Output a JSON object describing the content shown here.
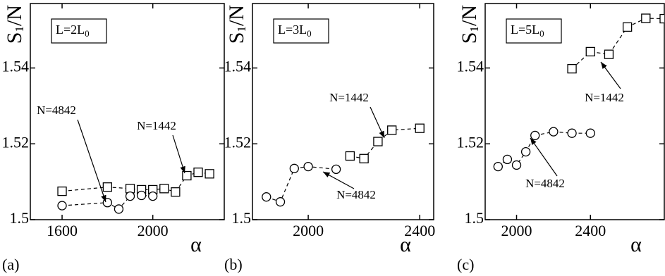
{
  "chart_data": [
    {
      "type": "line",
      "panel_label": "(a)",
      "box_label": [
        "L=2L",
        "0"
      ],
      "ylabel": [
        "S",
        "1",
        "/N"
      ],
      "xlabel": "α",
      "xlim": [
        1460,
        2315
      ],
      "xticks": [
        1600,
        2000
      ],
      "ylim": [
        1.5,
        1.557
      ],
      "yticks": [
        1.5,
        1.52,
        1.54
      ],
      "annotations": [
        "N=4842",
        "N=1442"
      ],
      "series": [
        {
          "marker": "square",
          "color": "#000000",
          "x": [
            1600,
            1800,
            1900,
            1950,
            2000,
            2050,
            2100,
            2150,
            2200,
            2250
          ],
          "values": [
            1.5075,
            1.5086,
            1.5082,
            1.5079,
            1.5079,
            1.5082,
            1.5073,
            1.5116,
            1.5125,
            1.5121
          ]
        },
        {
          "marker": "circle",
          "color": "#000000",
          "x": [
            1600,
            1800,
            1850,
            1900,
            1950,
            2000
          ],
          "values": [
            1.5037,
            1.5045,
            1.5028,
            1.5062,
            1.5064,
            1.5062
          ]
        }
      ]
    },
    {
      "type": "line",
      "panel_label": "(b)",
      "box_label": [
        "L=3L",
        "0"
      ],
      "ylabel": [
        "S",
        "1",
        "/N"
      ],
      "xlabel": "α",
      "xlim": [
        1800,
        2450
      ],
      "xticks": [
        2000,
        2400
      ],
      "ylim": [
        1.5,
        1.557
      ],
      "yticks": [
        1.5,
        1.52,
        1.54
      ],
      "annotations": [
        "N=1442",
        "N=4842"
      ],
      "series": [
        {
          "marker": "square",
          "color": "#000000",
          "x": [
            2150,
            2200,
            2250,
            2300,
            2400
          ],
          "values": [
            1.5168,
            1.5161,
            1.5206,
            1.5236,
            1.5241
          ]
        },
        {
          "marker": "circle",
          "color": "#000000",
          "x": [
            1850,
            1900,
            1950,
            2000,
            2100
          ],
          "values": [
            1.506,
            1.5047,
            1.5135,
            1.514,
            1.5133
          ]
        }
      ]
    },
    {
      "type": "line",
      "panel_label": "(c)",
      "box_label": [
        "L=5L",
        "0"
      ],
      "ylabel": [
        "S",
        "1",
        "/N"
      ],
      "xlabel": "α",
      "xlim": [
        1830,
        2800
      ],
      "xticks": [
        2000,
        2400
      ],
      "ylim": [
        1.5,
        1.557
      ],
      "yticks": [
        1.5,
        1.52,
        1.54
      ],
      "annotations": [
        "N=1442",
        "N=4842"
      ],
      "series": [
        {
          "marker": "square",
          "color": "#000000",
          "x": [
            2300,
            2400,
            2500,
            2600,
            2700,
            2800
          ],
          "values": [
            1.5398,
            1.5443,
            1.5436,
            1.5508,
            1.5531,
            1.553
          ]
        },
        {
          "marker": "circle",
          "color": "#000000",
          "x": [
            1900,
            1950,
            2000,
            2050,
            2100,
            2200,
            2300,
            2400
          ],
          "values": [
            1.514,
            1.5159,
            1.5144,
            1.5179,
            1.5222,
            1.5232,
            1.5228,
            1.5228
          ]
        }
      ]
    }
  ]
}
